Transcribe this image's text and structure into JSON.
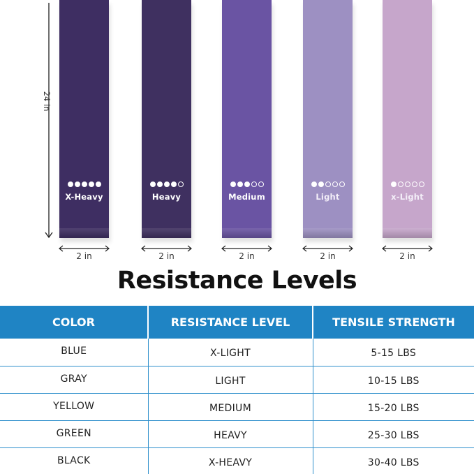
{
  "bands": [
    {
      "label": "X-Heavy",
      "level": 5,
      "max_level": 5,
      "color": "#3e2e62"
    },
    {
      "label": "Heavy",
      "level": 4,
      "max_level": 5,
      "color": "#3f3060"
    },
    {
      "label": "Medium",
      "level": 3,
      "max_level": 5,
      "color": "#6a54a3"
    },
    {
      "label": "Light",
      "level": 2,
      "max_level": 5,
      "color": "#9d90c2"
    },
    {
      "label": "x-Light",
      "level": 1,
      "max_level": 5,
      "color": "#c6a6cb"
    }
  ],
  "dimensions": {
    "length_label": "24 in",
    "width_label": "2 in"
  },
  "heading": "Resistance Levels",
  "table": {
    "header_color": "#1f84c4",
    "columns": [
      "COLOR",
      "RESISTANCE LEVEL",
      "TENSILE STRENGTH"
    ],
    "rows": [
      [
        "BLUE",
        "X-LIGHT",
        "5-15 LBS"
      ],
      [
        "GRAY",
        "LIGHT",
        "10-15 LBS"
      ],
      [
        "YELLOW",
        "MEDIUM",
        "15-20 LBS"
      ],
      [
        "GREEN",
        "HEAVY",
        "25-30 LBS"
      ],
      [
        "BLACK",
        "X-HEAVY",
        "30-40 LBS"
      ]
    ]
  }
}
